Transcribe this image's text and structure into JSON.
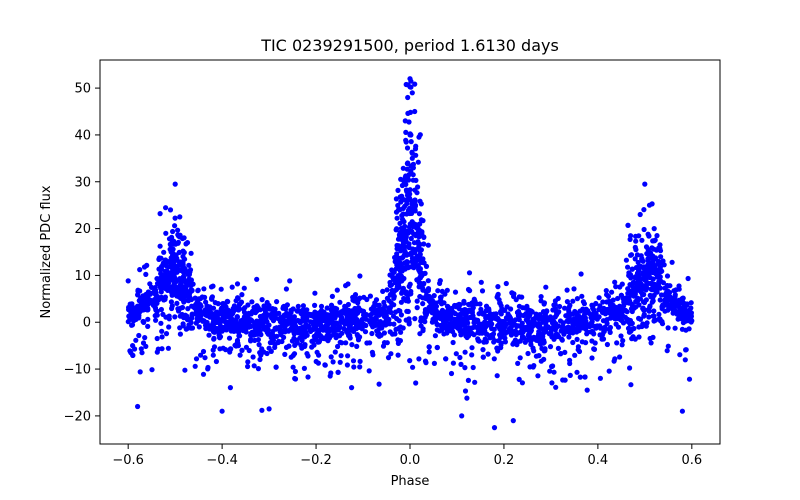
{
  "chart_data": {
    "type": "scatter",
    "title": "TIC 0239291500, period 1.6130 days",
    "xlabel": "Phase",
    "ylabel": "Normalized PDC flux",
    "xlim": [
      -0.66,
      0.66
    ],
    "ylim": [
      -26,
      56
    ],
    "xticks": [
      -0.6,
      -0.4,
      -0.2,
      0.0,
      0.2,
      0.4,
      0.6
    ],
    "xtick_labels": [
      "−0.6",
      "−0.4",
      "−0.2",
      "0.0",
      "0.2",
      "0.4",
      "0.6"
    ],
    "yticks": [
      -20,
      -10,
      0,
      10,
      20,
      30,
      40,
      50
    ],
    "ytick_labels": [
      "−20",
      "−10",
      "0",
      "10",
      "20",
      "30",
      "40",
      "50"
    ],
    "grid": false,
    "marker_color": "#0000ff",
    "series": [
      {
        "envelope_points": [
          [
            -0.6,
            1.0
          ],
          [
            -0.58,
            3.0
          ],
          [
            -0.56,
            4.0
          ],
          [
            -0.54,
            5.0
          ],
          [
            -0.52,
            6.5
          ],
          [
            -0.5,
            7.5
          ],
          [
            -0.48,
            6.0
          ],
          [
            -0.46,
            3.0
          ],
          [
            -0.44,
            1.5
          ],
          [
            -0.4,
            0.5
          ],
          [
            -0.3,
            -0.5
          ],
          [
            -0.2,
            -0.5
          ],
          [
            -0.1,
            0.5
          ],
          [
            -0.05,
            2.0
          ],
          [
            -0.02,
            8.0
          ],
          [
            0.0,
            14.0
          ],
          [
            0.02,
            8.0
          ],
          [
            0.05,
            2.0
          ],
          [
            0.1,
            0.5
          ],
          [
            0.2,
            -0.5
          ],
          [
            0.3,
            -0.5
          ],
          [
            0.4,
            0.5
          ],
          [
            0.44,
            1.5
          ],
          [
            0.46,
            3.0
          ],
          [
            0.48,
            6.0
          ],
          [
            0.5,
            7.5
          ],
          [
            0.52,
            6.5
          ],
          [
            0.54,
            5.0
          ],
          [
            0.56,
            4.0
          ],
          [
            0.58,
            3.0
          ],
          [
            0.6,
            1.0
          ]
        ],
        "peak_points": [
          [
            -0.5,
            29.5
          ],
          [
            -0.51,
            24.0
          ],
          [
            -0.49,
            22.5
          ],
          [
            -0.52,
            19.0
          ],
          [
            0.0,
            52.0
          ],
          [
            0.005,
            49.0
          ],
          [
            -0.005,
            48.0
          ],
          [
            0.01,
            45.0
          ],
          [
            -0.01,
            43.0
          ],
          [
            0.0,
            40.0
          ],
          [
            0.005,
            35.0
          ],
          [
            -0.005,
            34.0
          ],
          [
            0.5,
            29.5
          ],
          [
            0.51,
            25.0
          ],
          [
            0.49,
            23.0
          ],
          [
            0.52,
            20.0
          ],
          [
            0.18,
            -22.5
          ],
          [
            0.22,
            -21.0
          ],
          [
            -0.4,
            -19.0
          ],
          [
            -0.3,
            -18.5
          ],
          [
            0.11,
            -20.0
          ],
          [
            0.58,
            -19.0
          ],
          [
            -0.58,
            -18.0
          ]
        ]
      }
    ]
  }
}
